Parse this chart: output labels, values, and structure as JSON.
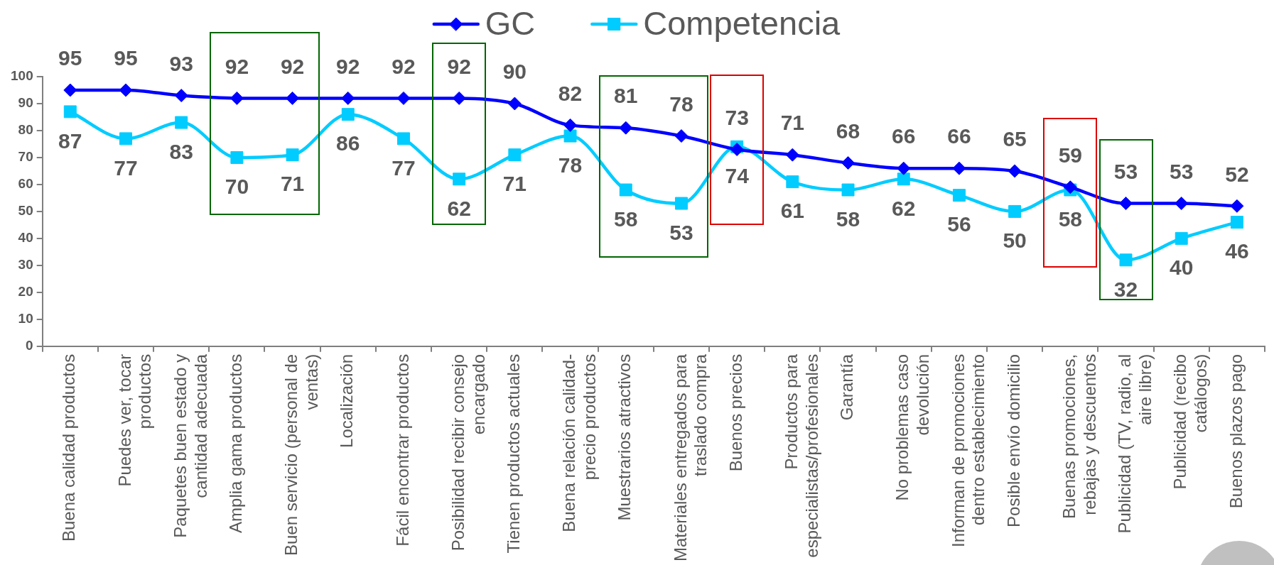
{
  "chart_data": {
    "type": "line",
    "categories": [
      "Buena calidad productos",
      "Puedes ver, tocar productos",
      "Paquetes buen estado y cantidad adecuada",
      "Amplia gama productos",
      "Buen servicio (personal de ventas)",
      "Localización",
      "Fácil encontrar productos",
      "Posibilidad recibir consejo encargado",
      "Tienen productos actuales",
      "Buena relación calidad-precio productos",
      "Muestrarios atractivos",
      "Materiales entregados para traslado compra",
      "Buenos precios",
      "Productos para especialistas/profesionales",
      "Garantía",
      "No problemas caso devolución",
      "Informan de promociones dentro establecimiento",
      "Posible envío domicilio",
      "Buenas promociones, rebajas y descuentos",
      "Publicidad (TV, radio, al aire libre)",
      "Publicidad (recibo catálogos)",
      "Buenos plazos pago"
    ],
    "series": [
      {
        "name": "GC",
        "color": "#0000ff",
        "marker": "diamond",
        "values": [
          95,
          95,
          93,
          92,
          92,
          92,
          92,
          92,
          90,
          82,
          81,
          78,
          73,
          71,
          68,
          66,
          66,
          65,
          59,
          53,
          53,
          52
        ]
      },
      {
        "name": "Competencia",
        "color": "#00ccff",
        "marker": "square",
        "values": [
          87,
          77,
          83,
          70,
          71,
          86,
          77,
          62,
          71,
          78,
          58,
          53,
          74,
          61,
          58,
          62,
          56,
          50,
          58,
          32,
          40,
          46
        ]
      }
    ],
    "ylim": [
      0,
      100
    ],
    "yticks": [
      0,
      10,
      20,
      30,
      40,
      50,
      60,
      70,
      80,
      90,
      100
    ],
    "data_labels": true,
    "legend": "top"
  }
}
